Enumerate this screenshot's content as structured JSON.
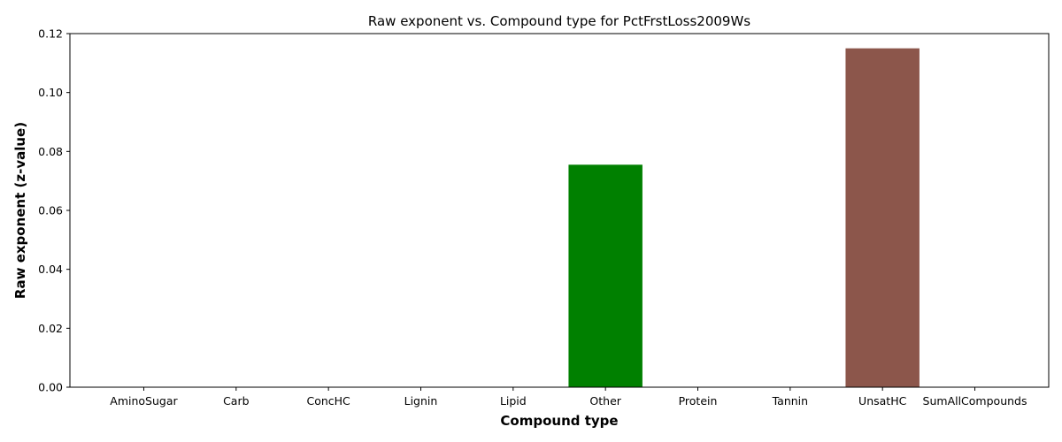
{
  "chart_data": {
    "type": "bar",
    "title": "Raw exponent vs. Compound type for PctFrstLoss2009Ws",
    "xlabel": "Compound type",
    "ylabel": "Raw exponent (z-value)",
    "categories": [
      "AminoSugar",
      "Carb",
      "ConcHC",
      "Lignin",
      "Lipid",
      "Other",
      "Protein",
      "Tannin",
      "UnsatHC",
      "SumAllCompounds"
    ],
    "values": [
      0,
      0,
      0,
      0,
      0,
      0.0755,
      0,
      0,
      0.115,
      0
    ],
    "colors": [
      "#1f77b4",
      "#ff7f0e",
      "#ffd700",
      "#d62728",
      "#9467bd",
      "#008000",
      "#e377c2",
      "#7f7f7f",
      "#8c564b",
      "#17becf"
    ],
    "ylim": [
      0,
      0.12
    ],
    "yticks": [
      "0.00",
      "0.02",
      "0.04",
      "0.06",
      "0.08",
      "0.10",
      "0.12"
    ],
    "grid": false,
    "legend": "none"
  }
}
